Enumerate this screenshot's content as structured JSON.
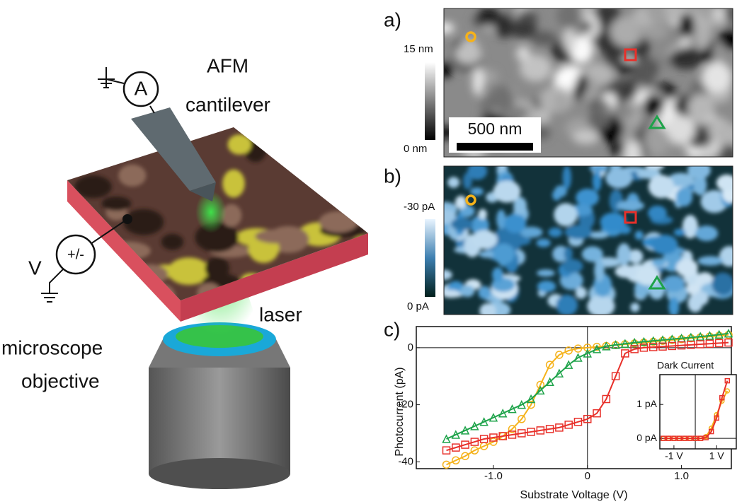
{
  "diagram": {
    "afm": "AFM",
    "cantilever": "cantilever",
    "ammeter": "A",
    "voltage": "V",
    "source": "+/-",
    "laser": "laser",
    "objective_line1": "microscope",
    "objective_line2": "objective"
  },
  "panels": {
    "a": {
      "label": "a)",
      "colorbar_max": "15 nm",
      "colorbar_min": "0 nm",
      "scale_bar": "500 nm"
    },
    "b": {
      "label": "b)",
      "colorbar_max": "-30 pA",
      "colorbar_min": "0 pA"
    },
    "c": {
      "label": "c)"
    }
  },
  "chart_data": [
    {
      "type": "line",
      "x_label": "Substrate Voltage (V)",
      "y_label": "Photocurrent (pA)",
      "x": [
        -1.5,
        -1.4,
        -1.3,
        -1.2,
        -1.1,
        -1.0,
        -0.9,
        -0.8,
        -0.7,
        -0.6,
        -0.5,
        -0.4,
        -0.3,
        -0.2,
        -0.1,
        0,
        0.1,
        0.2,
        0.3,
        0.4,
        0.5,
        0.6,
        0.7,
        0.8,
        0.9,
        1.0,
        1.1,
        1.2,
        1.3,
        1.4,
        1.5
      ],
      "series": [
        {
          "color": "#f5b21a",
          "marker": "circle",
          "values": [
            -41,
            -39.5,
            -38,
            -36,
            -34.5,
            -33,
            -31,
            -28.5,
            -25,
            -20,
            -13,
            -6,
            -2.5,
            -1,
            -0.3,
            0,
            0.3,
            0.6,
            0.9,
            1.2,
            1.5,
            1.8,
            2.1,
            2.4,
            2.7,
            3.0,
            3.3,
            3.6,
            3.9,
            4.2,
            4.5
          ]
        },
        {
          "color": "#1ea34a",
          "marker": "triangle",
          "values": [
            -32,
            -30.5,
            -29,
            -27.5,
            -26,
            -24.5,
            -23,
            -21.5,
            -20,
            -18,
            -15,
            -12,
            -9,
            -6,
            -3.5,
            -2,
            -0.5,
            0.5,
            1,
            1.4,
            1.8,
            2.1,
            2.4,
            2.7,
            3.0,
            3.3,
            3.6,
            3.9,
            4.2,
            4.6,
            5
          ]
        },
        {
          "color": "#e8302a",
          "marker": "square",
          "values": [
            -36,
            -35,
            -34,
            -33,
            -32,
            -31.5,
            -31,
            -30.5,
            -30,
            -29.5,
            -29,
            -28.5,
            -28,
            -27,
            -26,
            -25,
            -23,
            -18,
            -10,
            -2,
            -0.5,
            0,
            0.2,
            0.4,
            0.6,
            0.8,
            1,
            1.2,
            1.4,
            1.6,
            1.8
          ]
        }
      ],
      "xlim": [
        -1.82,
        1.53
      ],
      "ylim": [
        -42.4,
        7.4
      ],
      "xticks": [
        {
          "value": -1,
          "label": "-1.0"
        },
        0,
        {
          "value": 1,
          "label": "1.0"
        }
      ],
      "yticks": [
        0,
        -20,
        -40
      ],
      "zero_lines": true
    },
    {
      "type": "line",
      "title": "Dark Current",
      "x": [
        -1.5,
        -1.25,
        -1.0,
        -0.75,
        -0.5,
        -0.25,
        0,
        0.25,
        0.5,
        0.75,
        1.0,
        1.25,
        1.5
      ],
      "series": [
        {
          "color": "#f5b21a",
          "marker": "circle",
          "values": [
            0,
            0,
            0,
            0,
            0,
            0,
            0,
            0,
            0.05,
            0.3,
            0.7,
            1.1,
            1.4
          ]
        },
        {
          "color": "#e8302a",
          "marker": "square",
          "values": [
            0,
            0,
            0,
            0,
            0,
            0,
            0,
            0,
            0.02,
            0.2,
            0.6,
            1.2,
            1.7
          ]
        }
      ],
      "xlim": [
        -1.66,
        1.92
      ],
      "ylim": [
        -0.31,
        1.88
      ],
      "xticks": [
        {
          "value": -1,
          "label": "-1 V"
        },
        {
          "value": 1,
          "label": "1 V"
        }
      ],
      "yticks": [
        {
          "value": 1,
          "label": "1 pA"
        },
        {
          "value": 0,
          "label": "0 pA"
        }
      ],
      "zero_lines": true
    }
  ]
}
